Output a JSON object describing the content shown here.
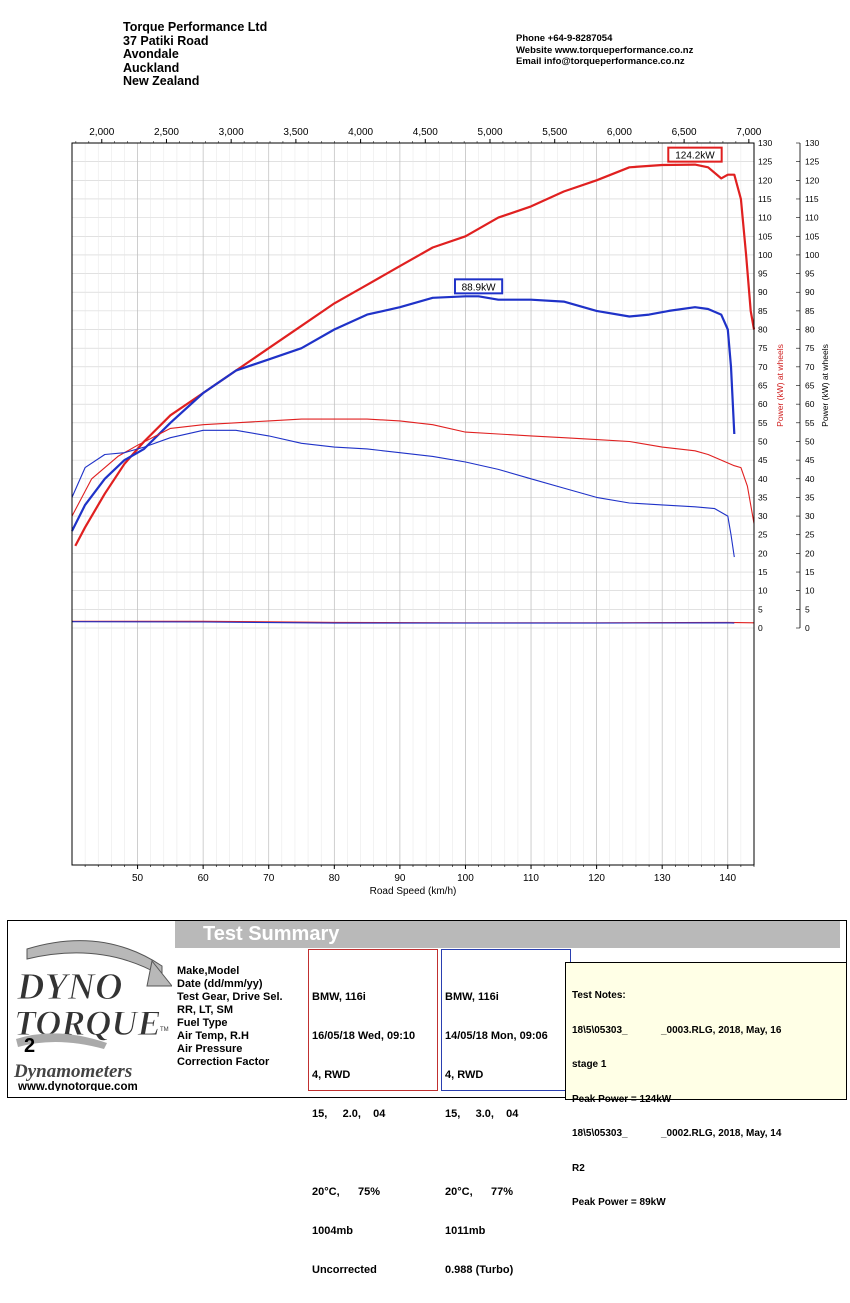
{
  "company": {
    "name": "Torque Performance Ltd",
    "address": [
      "37 Patiki Road",
      "Avondale",
      "Auckland",
      "New Zealand"
    ],
    "phone": "Phone +64-9-8287054",
    "website": "Website  www.torqueperformance.co.nz",
    "email": "Email  info@torqueperformance.co.nz"
  },
  "chart_data": {
    "type": "line",
    "xlabel": "Road Speed (km/h)",
    "x_ticks": [
      50,
      60,
      70,
      80,
      90,
      100,
      110,
      120,
      130,
      140
    ],
    "xlim": [
      40,
      144
    ],
    "rpm_ticks": [
      "2,000",
      "2,500",
      "3,000",
      "3,500",
      "4,000",
      "4,500",
      "5,000",
      "5,500",
      "6,000",
      "6,500",
      "7,000"
    ],
    "rpm_tick_values": [
      2000,
      2500,
      3000,
      3500,
      4000,
      4500,
      5000,
      5500,
      6000,
      6500,
      7000
    ],
    "rpm_lim": [
      1770,
      7040
    ],
    "ylim": [
      0,
      130
    ],
    "y_ticks": [
      0,
      5,
      10,
      15,
      20,
      25,
      30,
      35,
      40,
      45,
      50,
      55,
      60,
      65,
      70,
      75,
      80,
      85,
      90,
      95,
      100,
      105,
      110,
      115,
      120,
      125,
      130
    ],
    "y_label_inner": "Power (kW) at wheels",
    "y_label_outer": "Power (kW) at wheels",
    "grid": true,
    "series": [
      {
        "color": "#e02020",
        "x": [
          40.5,
          42,
          45,
          48,
          51,
          55,
          60,
          65,
          70,
          75,
          80,
          85,
          90,
          95,
          100,
          105,
          110,
          115,
          120,
          125,
          130,
          135,
          137,
          139,
          140,
          141,
          142,
          142.8,
          143.5,
          144
        ],
        "y": [
          22,
          27,
          36,
          44,
          50,
          57,
          63,
          69,
          75,
          81,
          87,
          92,
          97,
          102,
          105,
          110,
          113,
          117,
          120,
          123.5,
          124.1,
          124.2,
          123.5,
          120.5,
          121.5,
          121.5,
          115,
          100,
          85,
          80
        ],
        "peak_label": "124.2kW",
        "peak_x": 135,
        "peak_y": 124.2
      },
      {
        "color": "#1f32c8",
        "x": [
          40,
          42,
          45,
          48,
          51,
          55,
          60,
          65,
          70,
          75,
          80,
          85,
          90,
          95,
          100,
          102,
          105,
          110,
          115,
          120,
          125,
          128,
          131,
          135,
          137,
          139,
          140,
          140.5,
          141
        ],
        "y": [
          26,
          33,
          40,
          45,
          48,
          55,
          63,
          69,
          72,
          75,
          80,
          84,
          86,
          88.5,
          88.9,
          88.9,
          88,
          88,
          87.5,
          85,
          83.5,
          84,
          85,
          86,
          85.5,
          84,
          80,
          70,
          52
        ],
        "peak_label": "88.9kW",
        "peak_x": 102,
        "peak_y": 88.9
      },
      {
        "color": "#e02020",
        "thin": true,
        "x": [
          40,
          43,
          47,
          50,
          55,
          60,
          65,
          70,
          75,
          80,
          85,
          90,
          95,
          100,
          105,
          110,
          115,
          120,
          125,
          130,
          135,
          137,
          139,
          141,
          142,
          143,
          144
        ],
        "y": [
          30,
          40,
          46,
          49,
          53.5,
          54.5,
          55,
          55.5,
          56,
          56,
          56,
          55.5,
          54.5,
          52.5,
          52,
          51.5,
          51,
          50.5,
          50,
          48.5,
          47.5,
          46.5,
          45,
          43.5,
          43,
          38,
          28
        ]
      },
      {
        "color": "#1f32c8",
        "thin": true,
        "x": [
          40,
          42,
          45,
          48,
          51,
          55,
          60,
          65,
          70,
          75,
          80,
          85,
          90,
          95,
          100,
          105,
          110,
          115,
          120,
          125,
          130,
          135,
          138,
          140,
          140.5,
          141
        ],
        "y": [
          35,
          43,
          46.5,
          47,
          48.5,
          51,
          53,
          53,
          51.5,
          49.5,
          48.5,
          48,
          47,
          46,
          44.5,
          42.5,
          40,
          37.5,
          35,
          33.5,
          33,
          32.5,
          32,
          30,
          25,
          19
        ]
      },
      {
        "color": "#e02020",
        "thin": true,
        "x": [
          40,
          60,
          80,
          100,
          120,
          140,
          144
        ],
        "y": [
          1.8,
          1.8,
          1.5,
          1.4,
          1.4,
          1.5,
          1.4
        ]
      },
      {
        "color": "#1f32c8",
        "thin": true,
        "x": [
          40,
          60,
          80,
          100,
          120,
          140,
          141
        ],
        "y": [
          1.7,
          1.6,
          1.3,
          1.3,
          1.3,
          1.4,
          1.3
        ]
      }
    ]
  },
  "summary": {
    "title": "Test Summary",
    "logo_top": "DYNO",
    "logo_bottom": "TORQUE",
    "logo_tm": "TM",
    "logo_num": "2",
    "logo_sub": "Dynamometers",
    "logo_url": "www.dynotorque.com",
    "labels": [
      "Make,Model",
      "Date (dd/mm/yy)",
      "Test Gear, Drive Sel.",
      "RR, LT, SM",
      "Fuel Type",
      "Air Temp, R.H",
      "Air Pressure",
      "Correction Factor"
    ],
    "run1": [
      "BMW, 116i",
      "16/05/18 Wed, 09:10",
      "4, RWD",
      "15,     2.0,    04",
      "",
      "20°C,      75%",
      "1004mb",
      "Uncorrected"
    ],
    "run2": [
      "BMW, 116i",
      "14/05/18 Mon, 09:06",
      "4, RWD",
      "15,     3.0,    04",
      "",
      "20°C,      77%",
      "1011mb",
      "0.988 (Turbo)"
    ],
    "notes": [
      "Test Notes:",
      "18\\5\\05303_            _0003.RLG, 2018, May, 16",
      "stage 1",
      "Peak Power = 124kW",
      "18\\5\\05303_            _0002.RLG, 2018, May, 14",
      "R2",
      "Peak Power = 89kW"
    ]
  }
}
